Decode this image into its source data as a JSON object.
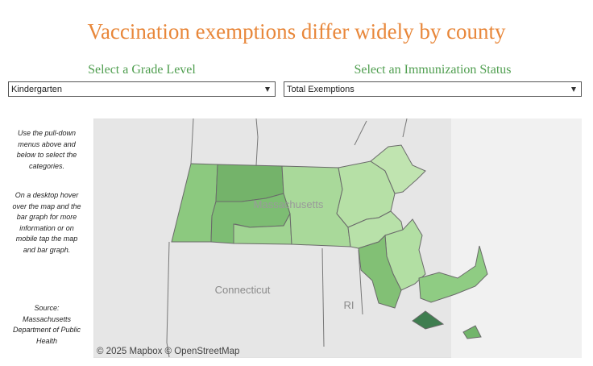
{
  "header": {
    "title": "Vaccination exemptions differ widely by county"
  },
  "filters": [
    {
      "label": "Select a Grade Level",
      "selected": "Kindergarten"
    },
    {
      "label": "Select an Immunization Status",
      "selected": "Total Exemptions"
    }
  ],
  "sidebar": {
    "instructions": [
      [
        "Use the pull-down",
        "menus above and",
        "below to select the",
        "categories."
      ],
      [
        "On a desktop hover",
        "over the map and the",
        "bar graph for more",
        "information or on",
        "mobile  tap the map",
        "and bar graph."
      ]
    ],
    "source": [
      "Source:",
      "Massachusetts",
      "Department of Public",
      "Health"
    ]
  },
  "map": {
    "labels": [
      "Massachusetts",
      "Connecticut",
      "RI"
    ],
    "attribution": "© 2025 Mapbox © OpenStreetMap"
  }
}
